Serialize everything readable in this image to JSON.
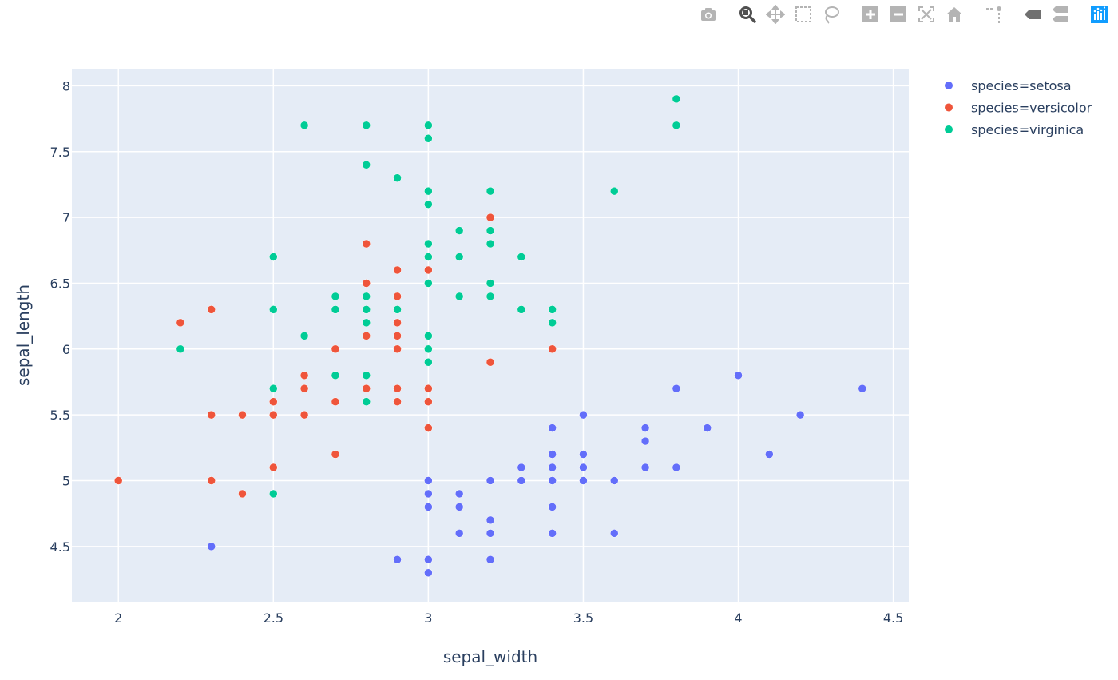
{
  "modebar": {
    "buttons": [
      {
        "name": "camera-icon"
      },
      {
        "name": "zoom-icon"
      },
      {
        "name": "pan-icon"
      },
      {
        "name": "box-select-icon"
      },
      {
        "name": "lasso-select-icon"
      },
      {
        "name": "zoom-in-icon"
      },
      {
        "name": "zoom-out-icon"
      },
      {
        "name": "autoscale-icon"
      },
      {
        "name": "reset-axes-icon"
      },
      {
        "name": "spike-lines-icon"
      },
      {
        "name": "hover-closest-icon"
      },
      {
        "name": "hover-compare-icon"
      },
      {
        "name": "plotly-logo-icon"
      }
    ]
  },
  "chart_data": {
    "type": "scatter",
    "title": "",
    "xlabel": "sepal_width",
    "ylabel": "sepal_length",
    "xlim": [
      1.85,
      4.55
    ],
    "ylim": [
      4.08,
      8.13
    ],
    "xticks": [
      2,
      2.5,
      3,
      3.5,
      4,
      4.5
    ],
    "xtick_labels": [
      "2",
      "2.5",
      "3",
      "3.5",
      "4",
      "4.5"
    ],
    "yticks": [
      4.5,
      5,
      5.5,
      6,
      6.5,
      7,
      7.5,
      8
    ],
    "ytick_labels": [
      "4.5",
      "5",
      "5.5",
      "6",
      "6.5",
      "7",
      "7.5",
      "8"
    ],
    "grid": true,
    "legend": "right",
    "background_color": "#e5ecf6",
    "series": [
      {
        "name": "species=setosa",
        "color": "#636efa",
        "points": [
          [
            2.3,
            4.5
          ],
          [
            2.9,
            4.4
          ],
          [
            3.0,
            4.4
          ],
          [
            3.0,
            4.3
          ],
          [
            3.0,
            5.0
          ],
          [
            3.0,
            4.9
          ],
          [
            3.0,
            4.8
          ],
          [
            3.1,
            4.9
          ],
          [
            3.1,
            4.8
          ],
          [
            3.1,
            4.6
          ],
          [
            3.2,
            5.0
          ],
          [
            3.2,
            4.7
          ],
          [
            3.2,
            4.6
          ],
          [
            3.2,
            4.4
          ],
          [
            3.3,
            5.1
          ],
          [
            3.3,
            5.0
          ],
          [
            3.4,
            5.4
          ],
          [
            3.4,
            5.2
          ],
          [
            3.4,
            5.1
          ],
          [
            3.4,
            5.0
          ],
          [
            3.4,
            4.8
          ],
          [
            3.4,
            4.6
          ],
          [
            3.5,
            5.5
          ],
          [
            3.5,
            5.2
          ],
          [
            3.5,
            5.1
          ],
          [
            3.5,
            5.0
          ],
          [
            3.6,
            5.0
          ],
          [
            3.6,
            4.6
          ],
          [
            3.7,
            5.4
          ],
          [
            3.7,
            5.3
          ],
          [
            3.7,
            5.1
          ],
          [
            3.8,
            5.7
          ],
          [
            3.8,
            5.1
          ],
          [
            3.9,
            5.4
          ],
          [
            4.0,
            5.8
          ],
          [
            4.1,
            5.2
          ],
          [
            4.2,
            5.5
          ],
          [
            4.4,
            5.7
          ]
        ]
      },
      {
        "name": "species=versicolor",
        "color": "#ef553b",
        "points": [
          [
            2.0,
            5.0
          ],
          [
            2.2,
            6.2
          ],
          [
            2.3,
            6.3
          ],
          [
            2.3,
            5.5
          ],
          [
            2.3,
            5.0
          ],
          [
            2.4,
            5.5
          ],
          [
            2.4,
            4.9
          ],
          [
            2.5,
            5.6
          ],
          [
            2.5,
            5.5
          ],
          [
            2.5,
            5.1
          ],
          [
            2.6,
            5.8
          ],
          [
            2.6,
            5.7
          ],
          [
            2.6,
            5.5
          ],
          [
            2.7,
            6.0
          ],
          [
            2.7,
            5.8
          ],
          [
            2.7,
            5.6
          ],
          [
            2.7,
            5.2
          ],
          [
            2.8,
            6.8
          ],
          [
            2.8,
            6.5
          ],
          [
            2.8,
            6.1
          ],
          [
            2.8,
            5.7
          ],
          [
            2.9,
            6.6
          ],
          [
            2.9,
            6.4
          ],
          [
            2.9,
            6.2
          ],
          [
            2.9,
            6.1
          ],
          [
            2.9,
            6.0
          ],
          [
            2.9,
            5.7
          ],
          [
            2.9,
            5.6
          ],
          [
            3.0,
            6.6
          ],
          [
            3.0,
            5.7
          ],
          [
            3.0,
            5.6
          ],
          [
            3.0,
            5.4
          ],
          [
            3.2,
            7.0
          ],
          [
            3.2,
            5.9
          ],
          [
            3.4,
            6.0
          ]
        ]
      },
      {
        "name": "species=virginica",
        "color": "#00cc96",
        "points": [
          [
            2.2,
            6.0
          ],
          [
            2.5,
            6.7
          ],
          [
            2.5,
            6.3
          ],
          [
            2.5,
            5.7
          ],
          [
            2.5,
            4.9
          ],
          [
            2.6,
            7.7
          ],
          [
            2.6,
            6.1
          ],
          [
            2.7,
            6.4
          ],
          [
            2.7,
            6.3
          ],
          [
            2.7,
            5.8
          ],
          [
            2.8,
            7.7
          ],
          [
            2.8,
            7.4
          ],
          [
            2.8,
            6.4
          ],
          [
            2.8,
            6.3
          ],
          [
            2.8,
            6.2
          ],
          [
            2.8,
            5.8
          ],
          [
            2.8,
            5.6
          ],
          [
            2.9,
            7.3
          ],
          [
            2.9,
            6.3
          ],
          [
            3.0,
            7.7
          ],
          [
            3.0,
            7.6
          ],
          [
            3.0,
            7.2
          ],
          [
            3.0,
            7.1
          ],
          [
            3.0,
            6.8
          ],
          [
            3.0,
            6.7
          ],
          [
            3.0,
            6.5
          ],
          [
            3.0,
            6.1
          ],
          [
            3.0,
            6.0
          ],
          [
            3.0,
            5.9
          ],
          [
            3.1,
            6.9
          ],
          [
            3.1,
            6.7
          ],
          [
            3.1,
            6.4
          ],
          [
            3.2,
            7.2
          ],
          [
            3.2,
            6.9
          ],
          [
            3.2,
            6.8
          ],
          [
            3.2,
            6.5
          ],
          [
            3.2,
            6.4
          ],
          [
            3.3,
            6.7
          ],
          [
            3.3,
            6.3
          ],
          [
            3.4,
            6.3
          ],
          [
            3.4,
            6.2
          ],
          [
            3.6,
            7.2
          ],
          [
            3.8,
            7.9
          ],
          [
            3.8,
            7.7
          ]
        ]
      }
    ]
  }
}
